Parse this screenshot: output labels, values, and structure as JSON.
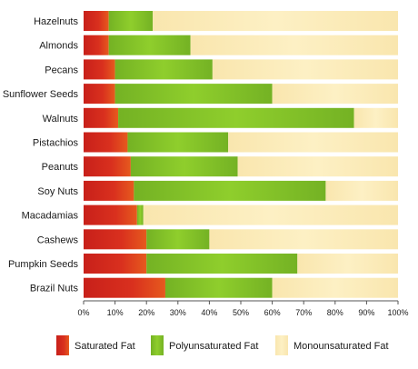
{
  "chart_data": {
    "type": "bar",
    "orientation": "horizontal",
    "stacked": "100%",
    "categories": [
      "Hazelnuts",
      "Almonds",
      "Pecans",
      "Sunflower Seeds",
      "Walnuts",
      "Pistachios",
      "Peanuts",
      "Soy Nuts",
      "Macadamias",
      "Cashews",
      "Pumpkin Seeds",
      "Brazil Nuts"
    ],
    "series": [
      {
        "name": "Saturated Fat",
        "color_light": "#d9301e",
        "color_dark": "#c8201a",
        "color_end": "#e65a1e",
        "values": [
          8,
          8,
          10,
          10,
          11,
          14,
          15,
          16,
          17,
          20,
          20,
          26
        ]
      },
      {
        "name": "Polyunsaturated Fat",
        "color_light": "#8fce2c",
        "color_dark": "#74b224",
        "values": [
          14,
          26,
          31,
          50,
          75,
          32,
          34,
          61,
          2,
          20,
          48,
          34
        ]
      },
      {
        "name": "Monounsaturated Fat",
        "color_light": "#fdf0c4",
        "color_dark": "#f9e6ae",
        "values": [
          78,
          66,
          59,
          40,
          14,
          54,
          51,
          23,
          81,
          60,
          32,
          40
        ]
      }
    ],
    "xlim": [
      0,
      100
    ],
    "xticks": [
      "0%",
      "10%",
      "20%",
      "30%",
      "40%",
      "50%",
      "60%",
      "70%",
      "80%",
      "90%",
      "100%"
    ],
    "title": "",
    "xlabel": "",
    "ylabel": "",
    "legend_position": "bottom",
    "grid": false
  }
}
